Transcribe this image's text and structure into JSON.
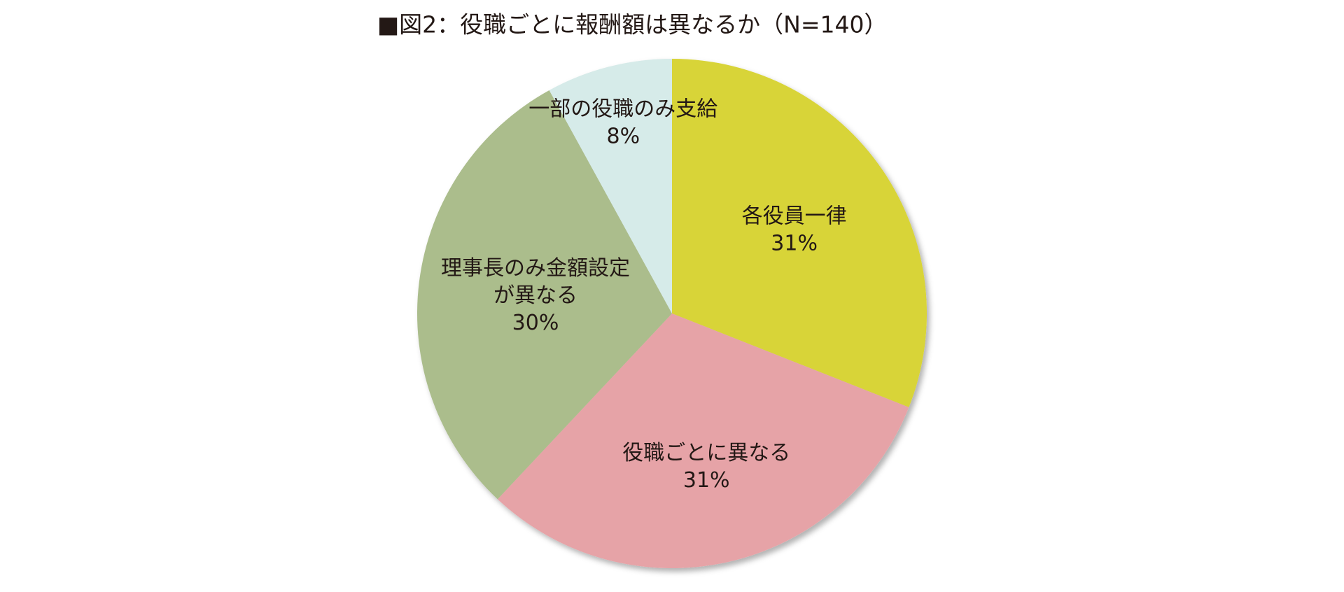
{
  "chart_data": {
    "type": "pie",
    "title": "■図2：役職ごとに報酬額は異なるか（N=140）",
    "categories": [
      [
        "各役員一律"
      ],
      [
        "役職ごとに異なる"
      ],
      [
        "理事長のみ金額設定",
        "が異なる"
      ],
      [
        "一部の役職のみ支給"
      ]
    ],
    "values": [
      31,
      31,
      30,
      8
    ],
    "value_labels": [
      "31%",
      "31%",
      "30%",
      "8%"
    ],
    "colors": [
      "#d8d437",
      "#e6a3a7",
      "#abbd8c",
      "#d6ebe9"
    ]
  }
}
